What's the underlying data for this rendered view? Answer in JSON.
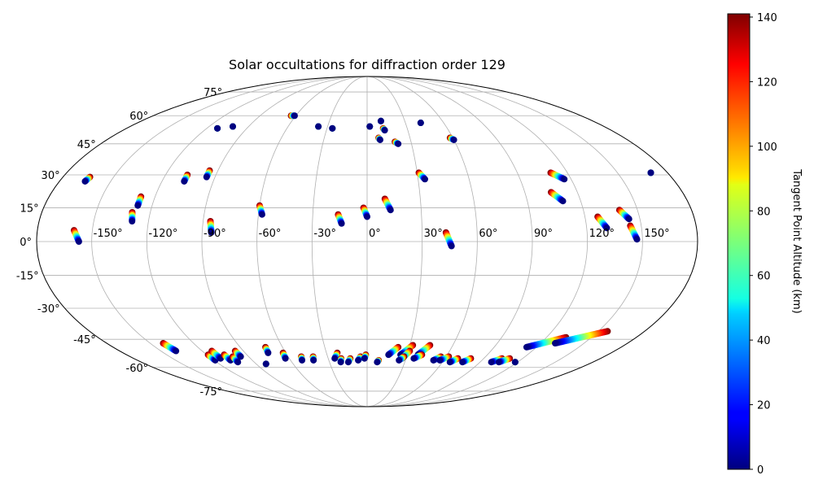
{
  "chart_data": {
    "type": "scatter",
    "projection": "mollweide",
    "title": "Solar occultations for diffraction order 129",
    "lon_ticks": [
      -150,
      -120,
      -90,
      -60,
      -30,
      0,
      30,
      60,
      90,
      120,
      150
    ],
    "lon_tick_labels": [
      "-150°",
      "-120°",
      "-90°",
      "-60°",
      "-30°",
      "0°",
      "30°",
      "60°",
      "90°",
      "120°",
      "150°"
    ],
    "lat_ticks": [
      75,
      60,
      45,
      30,
      15,
      0,
      -15,
      -30,
      -45,
      -60,
      -75
    ],
    "lat_tick_labels": [
      "75°",
      "60°",
      "45°",
      "30°",
      "15°",
      "0°",
      "-15°",
      "-30°",
      "-45°",
      "-60°",
      "-75°"
    ],
    "grid": true,
    "colorbar": {
      "label": "Tangent Point Altitude (km)",
      "min": 0,
      "max": 141,
      "ticks": [
        0,
        20,
        40,
        60,
        80,
        100,
        120,
        140
      ],
      "tick_labels": [
        "0",
        "20",
        "40",
        "60",
        "80",
        "100",
        "120",
        "140"
      ],
      "colormap": "jet"
    },
    "occultations": [
      {
        "lon_start": -164,
        "lat_start": 29,
        "lon_end": -165,
        "lat_end": 27
      },
      {
        "lon_start": -160,
        "lat_start": 5,
        "lon_end": -157,
        "lat_end": 0
      },
      {
        "lon_start": -112,
        "lat_start": 53,
        "lon_end": -112,
        "lat_end": 53
      },
      {
        "lon_start": -102,
        "lat_start": 54,
        "lon_end": -102,
        "lat_end": 54
      },
      {
        "lon_start": -107,
        "lat_start": 30,
        "lon_end": -107,
        "lat_end": 27
      },
      {
        "lon_start": -95,
        "lat_start": 32,
        "lon_end": -95,
        "lat_end": 29
      },
      {
        "lon_start": -128,
        "lat_start": 20,
        "lon_end": -128,
        "lat_end": 16
      },
      {
        "lon_start": -130,
        "lat_start": 13,
        "lon_end": -129,
        "lat_end": 9
      },
      {
        "lon_start": -86,
        "lat_start": 9,
        "lon_end": -85,
        "lat_end": 4
      },
      {
        "lon_start": -60,
        "lat_start": 16,
        "lon_end": -58,
        "lat_end": 12
      },
      {
        "lon_start": -64,
        "lat_start": 60,
        "lon_end": -61,
        "lat_end": 60
      },
      {
        "lon_start": -37,
        "lat_start": 54,
        "lon_end": -37,
        "lat_end": 54
      },
      {
        "lon_start": -26,
        "lat_start": 53,
        "lon_end": -26,
        "lat_end": 53
      },
      {
        "lon_start": -16,
        "lat_start": 12,
        "lon_end": -14,
        "lat_end": 8
      },
      {
        "lon_start": -2,
        "lat_start": 15,
        "lon_end": 0,
        "lat_end": 11
      },
      {
        "lon_start": 2,
        "lat_start": 54,
        "lon_end": 2,
        "lat_end": 54
      },
      {
        "lon_start": 11,
        "lat_start": 57,
        "lon_end": 11,
        "lat_end": 57
      },
      {
        "lon_start": 12,
        "lat_start": 53,
        "lon_end": 13,
        "lat_end": 52
      },
      {
        "lon_start": 8,
        "lat_start": 48,
        "lon_end": 9,
        "lat_end": 47
      },
      {
        "lon_start": 19,
        "lat_start": 46,
        "lon_end": 21,
        "lat_end": 45
      },
      {
        "lon_start": 10,
        "lat_start": 19,
        "lon_end": 13,
        "lat_end": 14
      },
      {
        "lon_start": 31,
        "lat_start": 31,
        "lon_end": 34,
        "lat_end": 28
      },
      {
        "lon_start": 42,
        "lat_start": 56,
        "lon_end": 42,
        "lat_end": 56
      },
      {
        "lon_start": 43,
        "lat_start": 4,
        "lon_end": 46,
        "lat_end": -2
      },
      {
        "lon_start": 58,
        "lat_start": 48,
        "lon_end": 60,
        "lat_end": 47
      },
      {
        "lon_start": 110,
        "lat_start": 31,
        "lon_end": 116,
        "lat_end": 28
      },
      {
        "lon_start": 105,
        "lat_start": 22,
        "lon_end": 110,
        "lat_end": 18
      },
      {
        "lon_start": 127,
        "lat_start": 11,
        "lon_end": 131,
        "lat_end": 6
      },
      {
        "lon_start": 140,
        "lat_start": 14,
        "lon_end": 144,
        "lat_end": 10
      },
      {
        "lon_start": 144,
        "lat_start": 7,
        "lon_end": 147,
        "lat_end": 1
      },
      {
        "lon_start": 170,
        "lat_start": 31,
        "lon_end": 170,
        "lat_end": 31
      },
      {
        "lon_start": -141,
        "lat_start": -47,
        "lon_end": -139,
        "lat_end": -51
      },
      {
        "lon_start": -119,
        "lat_start": -53,
        "lon_end": -119,
        "lat_end": -56
      },
      {
        "lon_start": -113,
        "lat_start": -51,
        "lon_end": -113,
        "lat_end": -55
      },
      {
        "lon_start": -107,
        "lat_start": -53,
        "lon_end": -107,
        "lat_end": -56
      },
      {
        "lon_start": -102,
        "lat_start": -54,
        "lon_end": -103,
        "lat_end": -57
      },
      {
        "lon_start": -96,
        "lat_start": -51,
        "lon_end": -96,
        "lat_end": -54
      },
      {
        "lon_start": -82,
        "lat_start": -58,
        "lon_end": -82,
        "lat_end": -58
      },
      {
        "lon_start": -72,
        "lat_start": -49,
        "lon_end": -73,
        "lat_end": -52
      },
      {
        "lon_start": -62,
        "lat_start": -52,
        "lon_end": -63,
        "lat_end": -55
      },
      {
        "lon_start": -50,
        "lat_start": -54,
        "lon_end": -51,
        "lat_end": -56
      },
      {
        "lon_start": -41,
        "lat_start": -54,
        "lon_end": -42,
        "lat_end": -56
      },
      {
        "lon_start": -22,
        "lat_start": -52,
        "lon_end": -25,
        "lat_end": -55
      },
      {
        "lon_start": -20,
        "lat_start": -55,
        "lon_end": -21,
        "lat_end": -57
      },
      {
        "lon_start": -13,
        "lat_start": -55,
        "lon_end": -15,
        "lat_end": -57
      },
      {
        "lon_start": -5,
        "lat_start": -54,
        "lon_end": -7,
        "lat_end": -56
      },
      {
        "lon_start": -1,
        "lat_start": -53,
        "lon_end": -2,
        "lat_end": -55
      },
      {
        "lon_start": 9,
        "lat_start": -56,
        "lon_end": 8,
        "lat_end": -57
      },
      {
        "lon_start": 22,
        "lat_start": -49,
        "lon_end": 16,
        "lat_end": -53
      },
      {
        "lon_start": 32,
        "lat_start": -48,
        "lon_end": 25,
        "lat_end": -53
      },
      {
        "lon_start": 31,
        "lat_start": -51,
        "lon_end": 27,
        "lat_end": -55
      },
      {
        "lon_start": 28,
        "lat_start": -54,
        "lon_end": 25,
        "lat_end": -56
      },
      {
        "lon_start": 44,
        "lat_start": -48,
        "lon_end": 38,
        "lat_end": -53
      },
      {
        "lon_start": 41,
        "lat_start": -53,
        "lon_end": 36,
        "lat_end": -55
      },
      {
        "lon_start": 56,
        "lat_start": -54,
        "lon_end": 52,
        "lat_end": -56
      },
      {
        "lon_start": 62,
        "lat_start": -54,
        "lon_end": 57,
        "lat_end": -56
      },
      {
        "lon_start": 70,
        "lat_start": -55,
        "lon_end": 66,
        "lat_end": -57
      },
      {
        "lon_start": 80,
        "lat_start": -55,
        "lon_end": 76,
        "lat_end": -57
      },
      {
        "lon_start": 104,
        "lat_start": -55,
        "lon_end": 99,
        "lat_end": -57
      },
      {
        "lon_start": 110,
        "lat_start": -55,
        "lon_end": 105,
        "lat_end": -57
      },
      {
        "lon_start": 118,
        "lat_start": -57,
        "lon_end": 118,
        "lat_end": -57
      },
      {
        "lon_start": 133,
        "lat_start": -44,
        "lon_end": 113,
        "lat_end": -49
      },
      {
        "lon_start": 156,
        "lat_start": -41,
        "lon_end": 130,
        "lat_end": -47
      }
    ]
  }
}
